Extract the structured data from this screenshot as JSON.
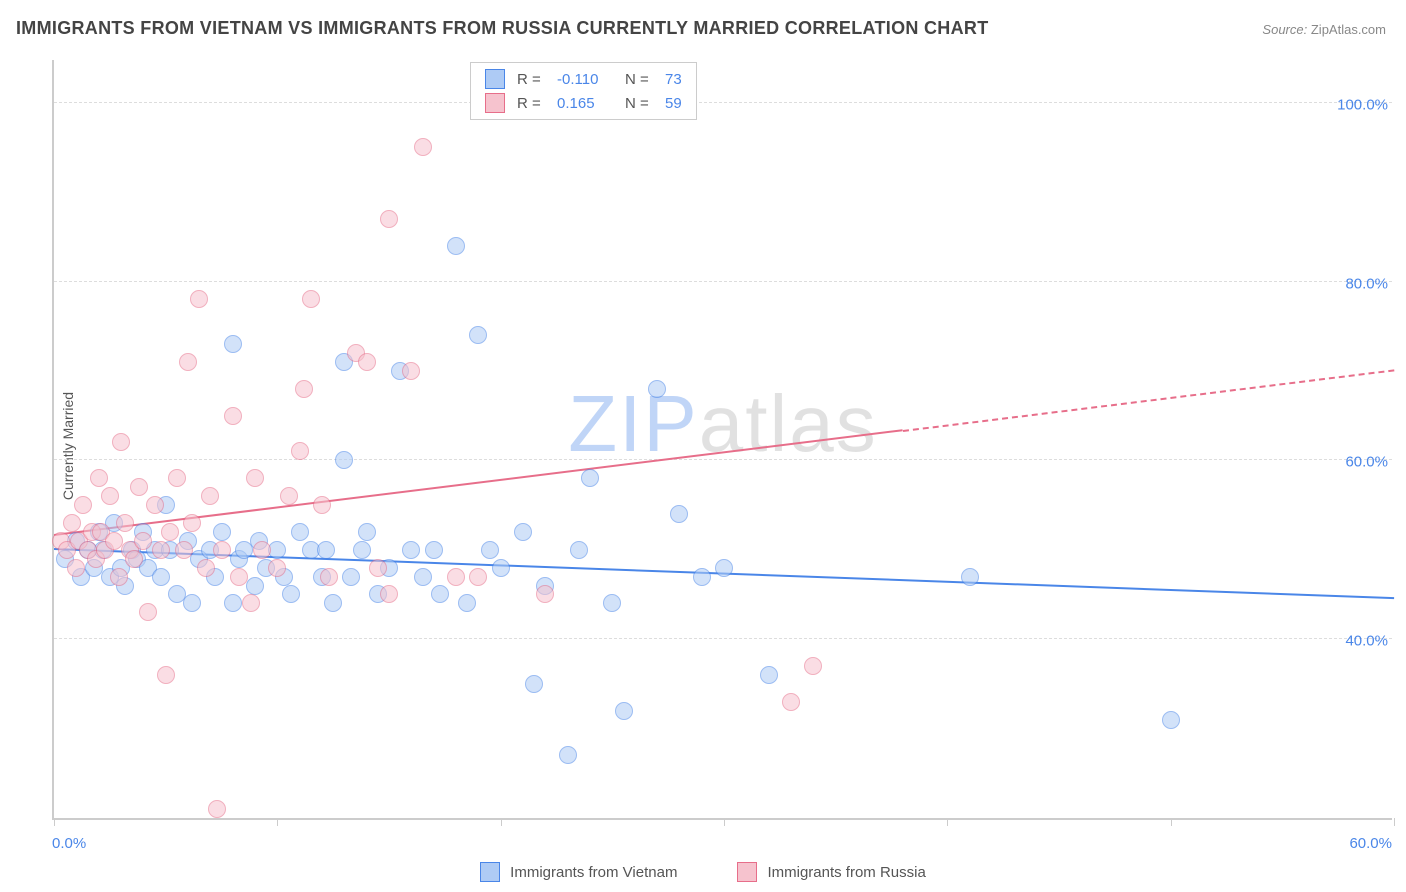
{
  "title": "IMMIGRANTS FROM VIETNAM VS IMMIGRANTS FROM RUSSIA CURRENTLY MARRIED CORRELATION CHART",
  "source_label": "Source:",
  "source_value": "ZipAtlas.com",
  "ylabel": "Currently Married",
  "watermark_z": "ZIP",
  "watermark_rest": "atlas",
  "chart": {
    "type": "scatter",
    "background_color": "#ffffff",
    "grid_color": "#dddddd",
    "axis_color": "#cccccc",
    "tick_label_color": "#4a86e8",
    "title_color": "#444444",
    "title_fontsize": 18,
    "label_fontsize": 14,
    "tick_fontsize": 15,
    "xlim": [
      0,
      60
    ],
    "ylim": [
      20,
      105
    ],
    "x_ticks": [
      0,
      10,
      20,
      30,
      40,
      50,
      60
    ],
    "x_tick_labels": {
      "0": "0.0%",
      "60": "60.0%"
    },
    "y_ticks": [
      40,
      60,
      80,
      100
    ],
    "y_tick_labels": {
      "40": "40.0%",
      "60": "60.0%",
      "80": "80.0%",
      "100": "100.0%"
    },
    "marker_radius": 9,
    "marker_opacity": 0.55,
    "series": [
      {
        "name": "Immigrants from Vietnam",
        "color_fill": "#aecbf5",
        "color_stroke": "#4a86e8",
        "R": "-0.110",
        "N": "73",
        "trend": {
          "x0": 0,
          "y0": 50.0,
          "x1": 60,
          "y1": 44.5,
          "solid_until_x": 60
        },
        "points": [
          [
            0.5,
            49
          ],
          [
            1,
            51
          ],
          [
            1.2,
            47
          ],
          [
            1.5,
            50
          ],
          [
            1.8,
            48
          ],
          [
            2,
            52
          ],
          [
            2.2,
            50
          ],
          [
            2.5,
            47
          ],
          [
            2.7,
            53
          ],
          [
            3,
            48
          ],
          [
            3.2,
            46
          ],
          [
            3.5,
            50
          ],
          [
            3.7,
            49
          ],
          [
            4,
            52
          ],
          [
            4.2,
            48
          ],
          [
            4.5,
            50
          ],
          [
            4.8,
            47
          ],
          [
            5,
            55
          ],
          [
            5.2,
            50
          ],
          [
            5.5,
            45
          ],
          [
            6,
            51
          ],
          [
            6.2,
            44
          ],
          [
            6.5,
            49
          ],
          [
            7,
            50
          ],
          [
            7.2,
            47
          ],
          [
            7.5,
            52
          ],
          [
            8,
            44
          ],
          [
            8,
            73
          ],
          [
            8.3,
            49
          ],
          [
            8.5,
            50
          ],
          [
            9,
            46
          ],
          [
            9.2,
            51
          ],
          [
            9.5,
            48
          ],
          [
            10,
            50
          ],
          [
            10.3,
            47
          ],
          [
            10.6,
            45
          ],
          [
            11,
            52
          ],
          [
            11.5,
            50
          ],
          [
            12,
            47
          ],
          [
            12.2,
            50
          ],
          [
            12.5,
            44
          ],
          [
            13,
            60
          ],
          [
            13,
            71
          ],
          [
            13.3,
            47
          ],
          [
            13.8,
            50
          ],
          [
            14,
            52
          ],
          [
            14.5,
            45
          ],
          [
            15,
            48
          ],
          [
            15.5,
            70
          ],
          [
            16,
            50
          ],
          [
            16.5,
            47
          ],
          [
            17,
            50
          ],
          [
            17.3,
            45
          ],
          [
            18,
            84
          ],
          [
            18.5,
            44
          ],
          [
            19,
            74
          ],
          [
            19.5,
            50
          ],
          [
            20,
            48
          ],
          [
            21,
            52
          ],
          [
            21.5,
            35
          ],
          [
            22,
            46
          ],
          [
            23,
            27
          ],
          [
            23.5,
            50
          ],
          [
            24,
            58
          ],
          [
            25,
            44
          ],
          [
            25.5,
            32
          ],
          [
            27,
            68
          ],
          [
            28,
            54
          ],
          [
            29,
            47
          ],
          [
            30,
            48
          ],
          [
            32,
            36
          ],
          [
            41,
            47
          ],
          [
            50,
            31
          ]
        ]
      },
      {
        "name": "Immigrants from Russia",
        "color_fill": "#f6c3ce",
        "color_stroke": "#e76e8a",
        "R": "0.165",
        "N": "59",
        "trend": {
          "x0": 0,
          "y0": 51.5,
          "x1": 60,
          "y1": 70.0,
          "solid_until_x": 38
        },
        "points": [
          [
            0.3,
            51
          ],
          [
            0.6,
            50
          ],
          [
            0.8,
            53
          ],
          [
            1,
            48
          ],
          [
            1.1,
            51
          ],
          [
            1.3,
            55
          ],
          [
            1.5,
            50
          ],
          [
            1.7,
            52
          ],
          [
            1.9,
            49
          ],
          [
            2,
            58
          ],
          [
            2.1,
            52
          ],
          [
            2.3,
            50
          ],
          [
            2.5,
            56
          ],
          [
            2.7,
            51
          ],
          [
            2.9,
            47
          ],
          [
            3,
            62
          ],
          [
            3.2,
            53
          ],
          [
            3.4,
            50
          ],
          [
            3.6,
            49
          ],
          [
            3.8,
            57
          ],
          [
            4,
            51
          ],
          [
            4.2,
            43
          ],
          [
            4.5,
            55
          ],
          [
            4.8,
            50
          ],
          [
            5,
            36
          ],
          [
            5.2,
            52
          ],
          [
            5.5,
            58
          ],
          [
            5.8,
            50
          ],
          [
            6,
            71
          ],
          [
            6.2,
            53
          ],
          [
            6.5,
            78
          ],
          [
            6.8,
            48
          ],
          [
            7,
            56
          ],
          [
            7.3,
            21
          ],
          [
            7.5,
            50
          ],
          [
            8,
            65
          ],
          [
            8.3,
            47
          ],
          [
            8.8,
            44
          ],
          [
            9,
            58
          ],
          [
            9.3,
            50
          ],
          [
            10,
            48
          ],
          [
            10.5,
            56
          ],
          [
            11,
            61
          ],
          [
            11.2,
            68
          ],
          [
            11.5,
            78
          ],
          [
            12,
            55
          ],
          [
            12.3,
            47
          ],
          [
            13.5,
            72
          ],
          [
            14,
            71
          ],
          [
            14.5,
            48
          ],
          [
            15,
            87
          ],
          [
            15,
            45
          ],
          [
            16,
            70
          ],
          [
            16.5,
            95
          ],
          [
            18,
            47
          ],
          [
            19,
            47
          ],
          [
            22,
            45
          ],
          [
            33,
            33
          ],
          [
            34,
            37
          ]
        ]
      }
    ]
  },
  "legend_bottom": [
    {
      "swatch_fill": "#aecbf5",
      "swatch_stroke": "#4a86e8",
      "label": "Immigrants from Vietnam"
    },
    {
      "swatch_fill": "#f6c3ce",
      "swatch_stroke": "#e76e8a",
      "label": "Immigrants from Russia"
    }
  ]
}
